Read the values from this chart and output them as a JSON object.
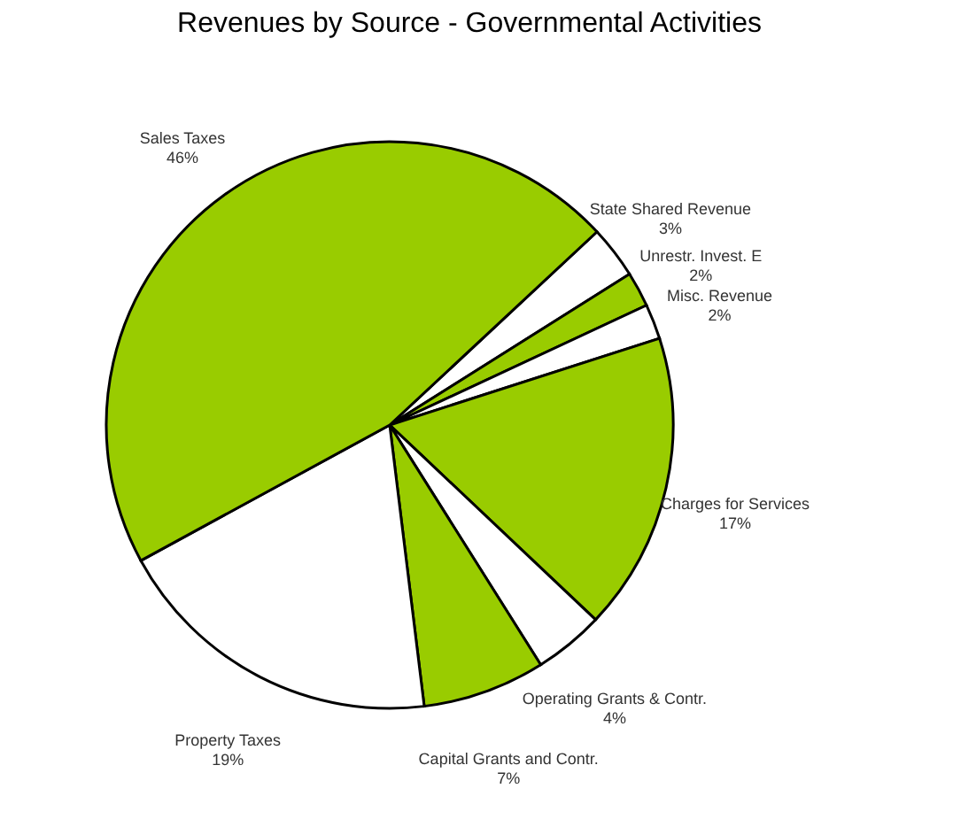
{
  "chart_data": {
    "type": "pie",
    "title": "Revenues by Source - Governmental Activities",
    "categories": [
      "State Shared Revenue",
      "Unrestr. Invest. E",
      "Misc. Revenue",
      "Charges for Services",
      "Operating Grants & Contr.",
      "Capital Grants and Contr.",
      "Property Taxes",
      "Sales Taxes"
    ],
    "values": [
      3,
      2,
      2,
      17,
      4,
      7,
      19,
      46
    ],
    "colors": [
      "#ffffff",
      "#99cc00",
      "#ffffff",
      "#99cc00",
      "#ffffff",
      "#99cc00",
      "#ffffff",
      "#99cc00"
    ],
    "value_labels": [
      "3%",
      "2%",
      "2%",
      "17%",
      "4%",
      "7%",
      "19%",
      "46%"
    ],
    "legend": false
  }
}
